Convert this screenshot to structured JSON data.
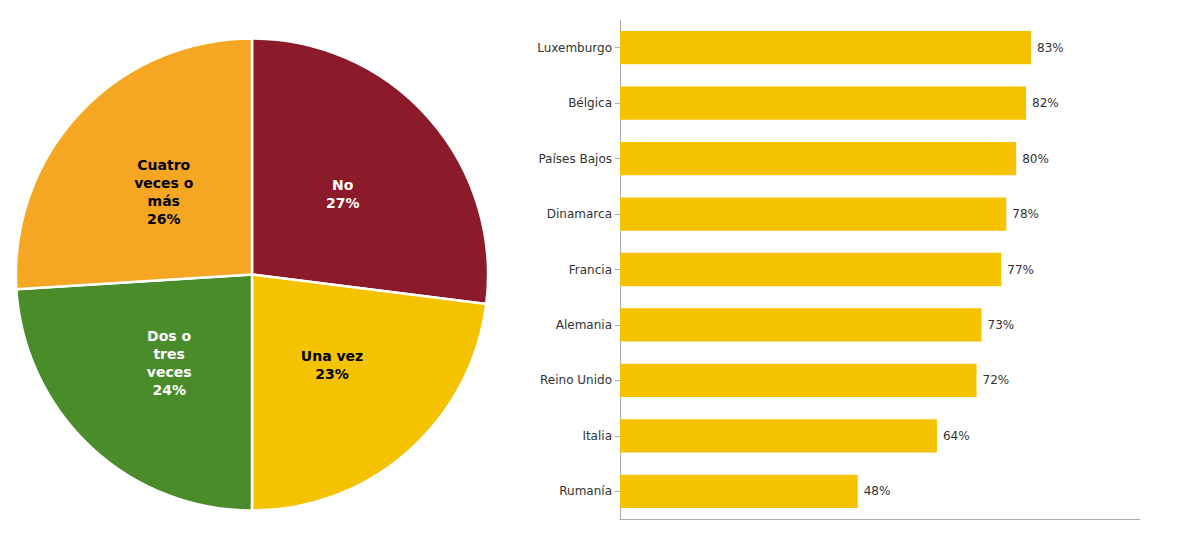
{
  "chart_data": [
    {
      "type": "pie",
      "categories": [
        "No",
        "Una vez",
        "Dos o\ntres\nveces",
        "Cuatro\nveces o\nmás"
      ],
      "values": [
        27,
        23,
        24,
        26
      ],
      "value_labels": [
        "27%",
        "23%",
        "24%",
        "26%"
      ],
      "colors": [
        "#8B1A2A",
        "#F5C200",
        "#4A8C2A",
        "#F5A623"
      ],
      "data_labels": true
    },
    {
      "type": "bar",
      "orientation": "horizontal",
      "categories": [
        "Luxemburgo",
        "Bélgica",
        "Países Bajos",
        "Dinamarca",
        "Francia",
        "Alemania",
        "Reino Unido",
        "Italia",
        "Rumanía"
      ],
      "values": [
        83,
        82,
        80,
        78,
        77,
        73,
        72,
        64,
        48
      ],
      "value_labels": [
        "83%",
        "82%",
        "80%",
        "78%",
        "77%",
        "73%",
        "72%",
        "64%",
        "48%"
      ],
      "color": "#F5C200",
      "xlim": [
        0,
        105
      ],
      "grid": false,
      "tick_labels": "y",
      "data_labels": true
    }
  ]
}
